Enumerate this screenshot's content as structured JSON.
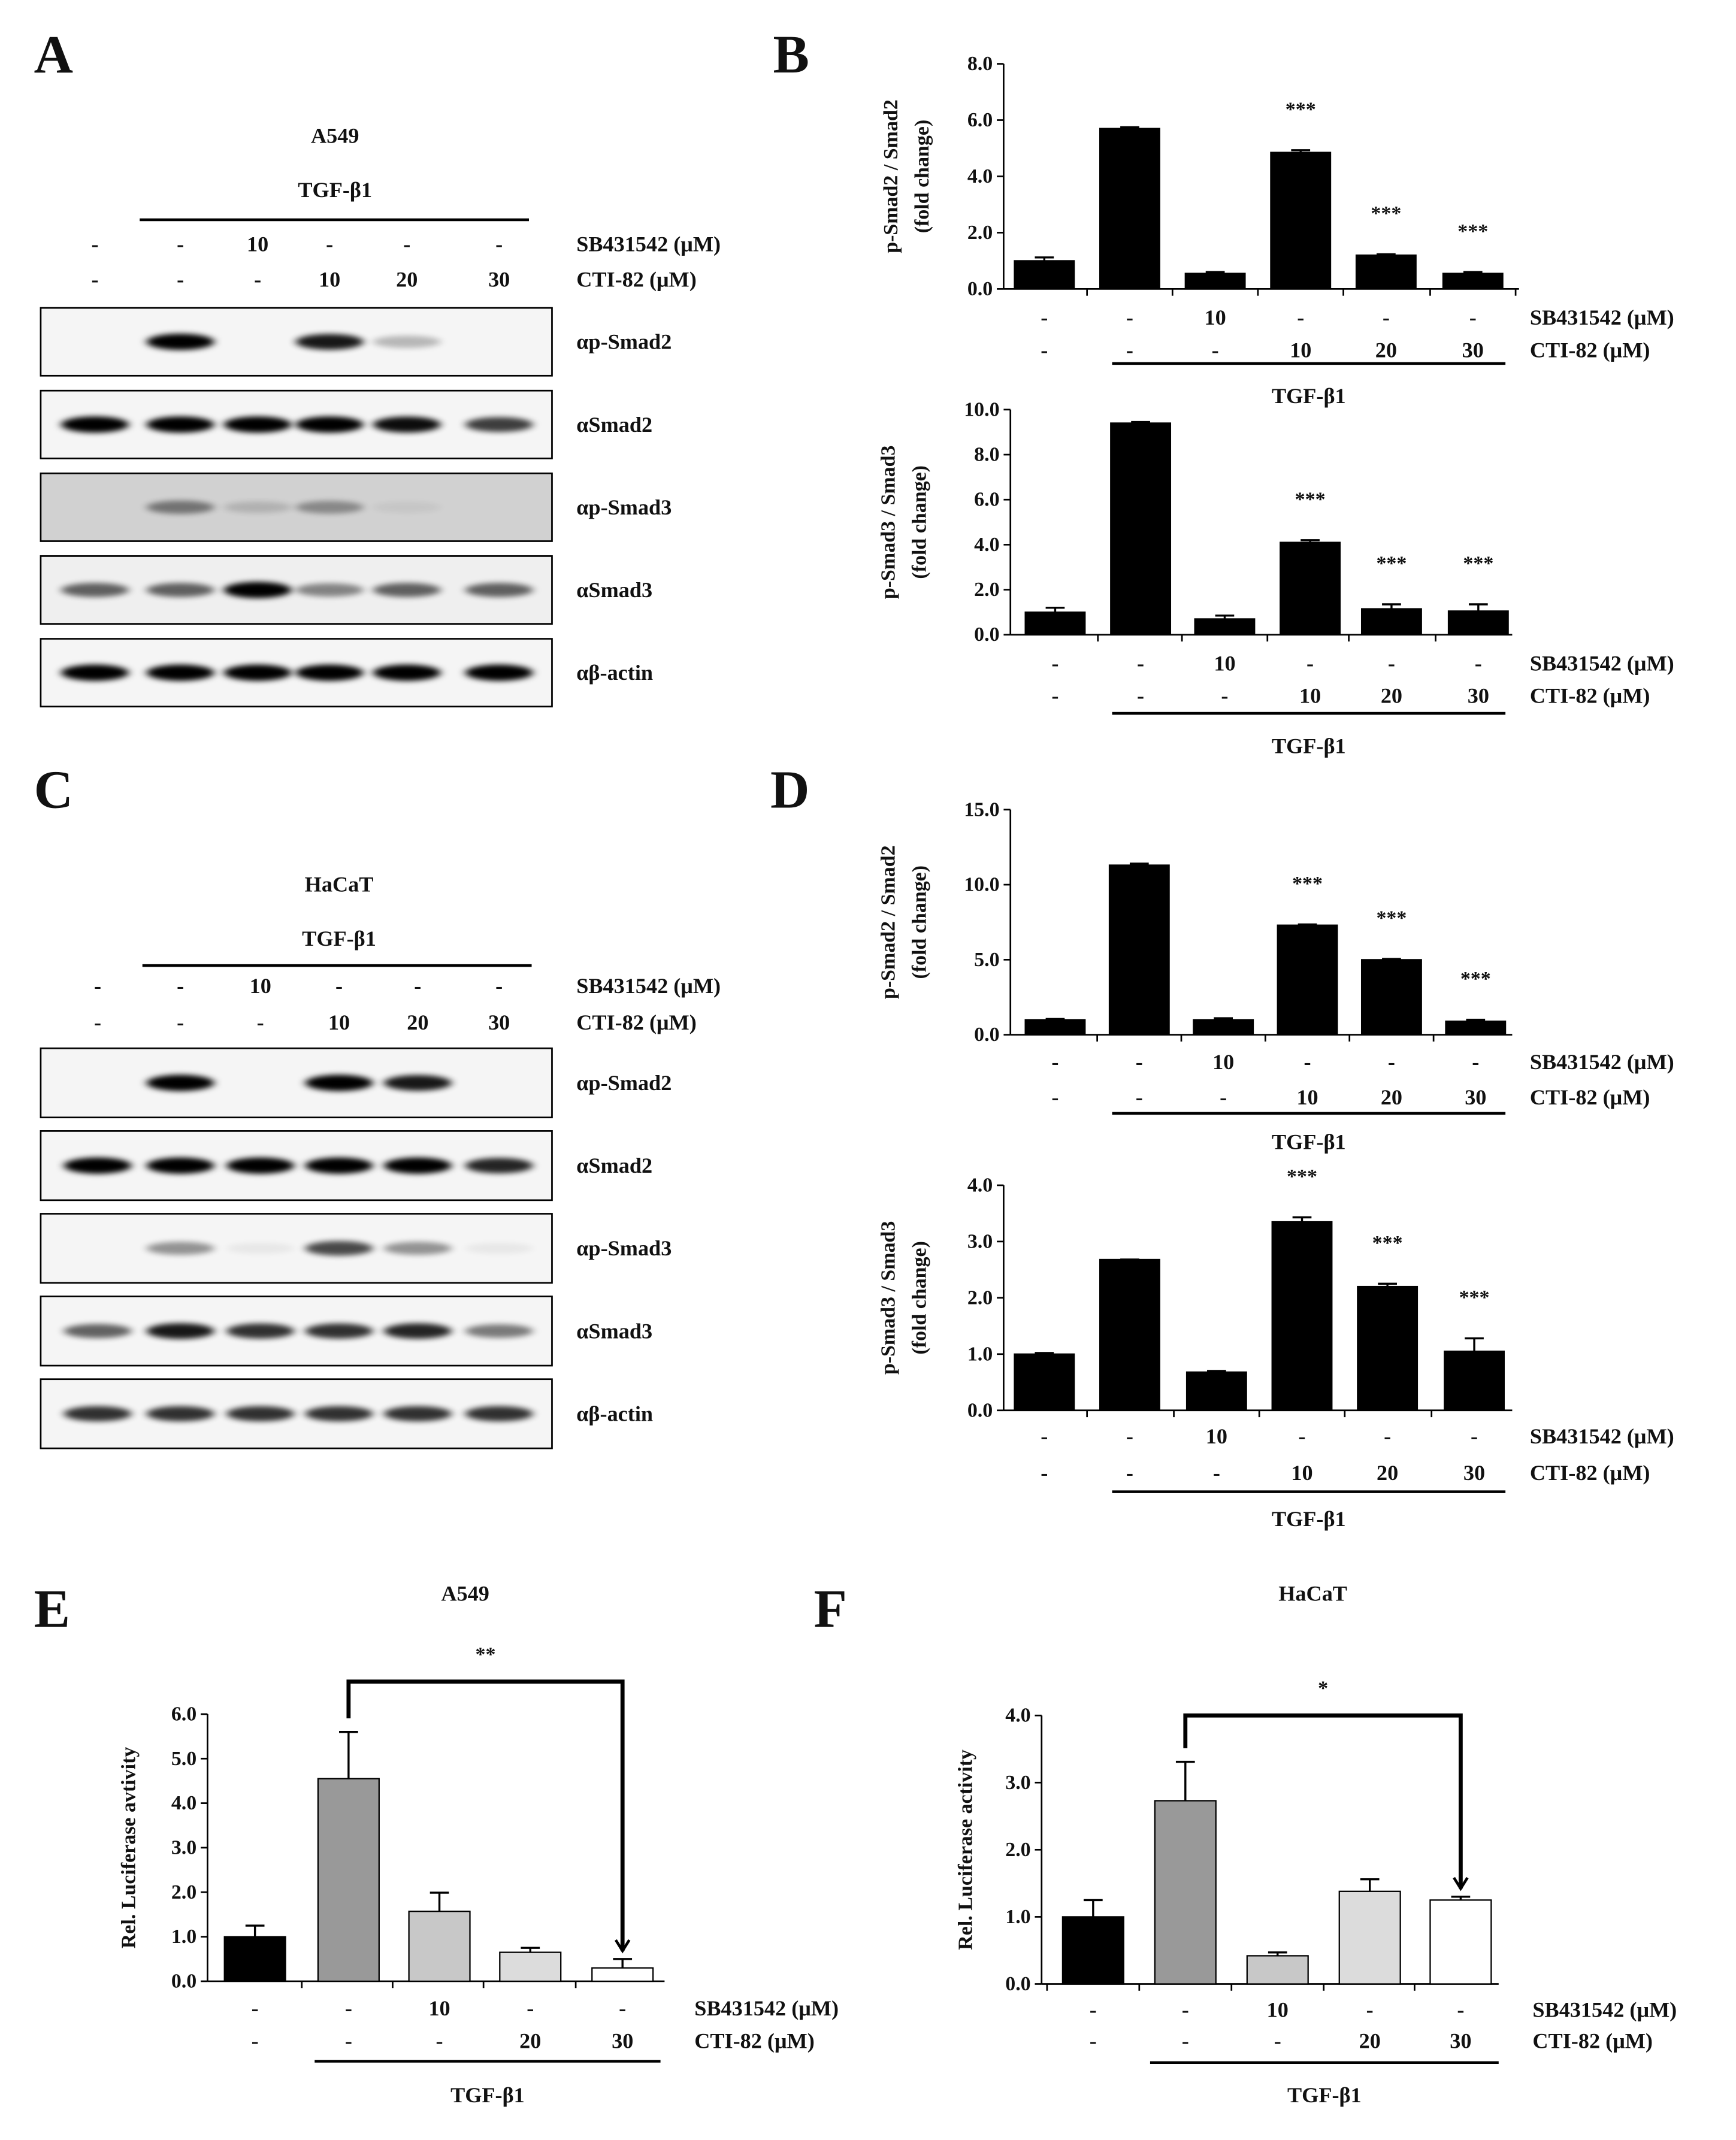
{
  "panel_labels": [
    "A",
    "B",
    "C",
    "D",
    "E",
    "F"
  ],
  "blots": [
    {
      "cell_line": "A549",
      "treatment": "TGF-β1",
      "conditions": [
        {
          "label": "SB431542 (μM)",
          "values": [
            "-",
            "-",
            "10",
            "-",
            "-",
            "-"
          ]
        },
        {
          "label": "CTI-82 (μM)",
          "values": [
            "-",
            "-",
            "-",
            "10",
            "20",
            "30"
          ]
        }
      ],
      "rows": [
        "αp-Smad2",
        "αSmad2",
        "αp-Smad3",
        "αSmad3",
        "αβ-actin"
      ]
    },
    {
      "cell_line": "HaCaT",
      "treatment": "TGF-β1",
      "conditions": [
        {
          "label": "SB431542 (μM)",
          "values": [
            "-",
            "-",
            "10",
            "-",
            "-",
            "-"
          ]
        },
        {
          "label": "CTI-82 (μM)",
          "values": [
            "-",
            "-",
            "-",
            "10",
            "20",
            "30"
          ]
        }
      ],
      "rows": [
        "αp-Smad2",
        "αSmad2",
        "αp-Smad3",
        "αSmad3",
        "αβ-actin"
      ]
    }
  ],
  "chart_data": [
    {
      "type": "bar",
      "ylabel": [
        "p-Smad2 / Smad2",
        "(fold change)"
      ],
      "values": [
        1.0,
        5.7,
        0.55,
        4.85,
        1.2,
        0.55
      ],
      "errors": [
        0.12,
        0.05,
        0.05,
        0.08,
        0.03,
        0.05
      ],
      "colors": [
        "#000000",
        "#000000",
        "#000000",
        "#000000",
        "#000000",
        "#000000"
      ],
      "annotations": [
        null,
        null,
        null,
        "***",
        "***",
        "***"
      ],
      "ylim": [
        0,
        8
      ],
      "yticks": [
        {
          "value": 0,
          "label": "0.0"
        },
        {
          "value": 2,
          "label": "2.0"
        },
        {
          "value": 4,
          "label": "4.0"
        },
        {
          "value": 6,
          "label": "6.0"
        },
        {
          "value": 8,
          "label": "8.0"
        }
      ],
      "conditions": [
        {
          "label": "SB431542 (μM)",
          "values": [
            "-",
            "-",
            "10",
            "-",
            "-",
            "-"
          ]
        },
        {
          "label": "CTI-82 (μM)",
          "values": [
            "-",
            "-",
            "-",
            "10",
            "20",
            "30"
          ]
        }
      ],
      "treatment": "TGF-β1"
    },
    {
      "type": "bar",
      "ylabel": [
        "p-Smad3 / Smad3",
        "(fold change)"
      ],
      "values": [
        1.0,
        9.4,
        0.7,
        4.1,
        1.15,
        1.05
      ],
      "errors": [
        0.2,
        0.05,
        0.15,
        0.1,
        0.2,
        0.3
      ],
      "colors": [
        "#000000",
        "#000000",
        "#000000",
        "#000000",
        "#000000",
        "#000000"
      ],
      "annotations": [
        null,
        null,
        null,
        "***",
        "***",
        "***"
      ],
      "ylim": [
        0,
        10
      ],
      "yticks": [
        {
          "value": 0,
          "label": "0.0"
        },
        {
          "value": 2,
          "label": "2.0"
        },
        {
          "value": 4,
          "label": "4.0"
        },
        {
          "value": 6,
          "label": "6.0"
        },
        {
          "value": 8,
          "label": "8.0"
        },
        {
          "value": 10,
          "label": "10.0"
        }
      ],
      "conditions": [
        {
          "label": "SB431542 (μM)",
          "values": [
            "-",
            "-",
            "10",
            "-",
            "-",
            "-"
          ]
        },
        {
          "label": "CTI-82 (μM)",
          "values": [
            "-",
            "-",
            "-",
            "10",
            "20",
            "30"
          ]
        }
      ],
      "treatment": "TGF-β1"
    },
    {
      "type": "bar",
      "ylabel": [
        "p-Smad2 / Smad2",
        "(fold change)"
      ],
      "values": [
        1.0,
        11.3,
        1.0,
        7.3,
        5.0,
        0.9
      ],
      "errors": [
        0.05,
        0.1,
        0.1,
        0.05,
        0.05,
        0.1
      ],
      "colors": [
        "#000000",
        "#000000",
        "#000000",
        "#000000",
        "#000000",
        "#000000"
      ],
      "annotations": [
        null,
        null,
        null,
        "***",
        "***",
        "***"
      ],
      "ylim": [
        0,
        15
      ],
      "yticks": [
        {
          "value": 0,
          "label": "0.0"
        },
        {
          "value": 5,
          "label": "5.0"
        },
        {
          "value": 10,
          "label": "10.0"
        },
        {
          "value": 15,
          "label": "15.0"
        }
      ],
      "conditions": [
        {
          "label": "SB431542 (μM)",
          "values": [
            "-",
            "-",
            "10",
            "-",
            "-",
            "-"
          ]
        },
        {
          "label": "CTI-82 (μM)",
          "values": [
            "-",
            "-",
            "-",
            "10",
            "20",
            "30"
          ]
        }
      ],
      "treatment": "TGF-β1"
    },
    {
      "type": "bar",
      "ylabel": [
        "p-Smad3 / Smad3",
        "(fold change)"
      ],
      "values": [
        1.0,
        2.68,
        0.68,
        3.35,
        2.2,
        1.05
      ],
      "errors": [
        0.02,
        0.0,
        0.02,
        0.08,
        0.05,
        0.23
      ],
      "colors": [
        "#000000",
        "#000000",
        "#000000",
        "#000000",
        "#000000",
        "#000000"
      ],
      "annotations": [
        null,
        null,
        null,
        "***",
        "***",
        "***"
      ],
      "ylim": [
        0,
        4
      ],
      "yticks": [
        {
          "value": 0,
          "label": "0.0"
        },
        {
          "value": 1,
          "label": "1.0"
        },
        {
          "value": 2,
          "label": "2.0"
        },
        {
          "value": 3,
          "label": "3.0"
        },
        {
          "value": 4,
          "label": "4.0"
        }
      ],
      "conditions": [
        {
          "label": "SB431542 (μM)",
          "values": [
            "-",
            "-",
            "10",
            "-",
            "-",
            "-"
          ]
        },
        {
          "label": "CTI-82 (μM)",
          "values": [
            "-",
            "-",
            "-",
            "10",
            "20",
            "30"
          ]
        }
      ],
      "treatment": "TGF-β1"
    },
    {
      "type": "bar",
      "title": "A549",
      "ylabel": [
        "Rel. Luciferase avtivity"
      ],
      "values": [
        1.0,
        4.55,
        1.57,
        0.65,
        0.3
      ],
      "errors": [
        0.25,
        1.05,
        0.42,
        0.1,
        0.2
      ],
      "colors": [
        "#000000",
        "#999999",
        "#c8c8c8",
        "#dcdcdc",
        "#ffffff"
      ],
      "significance": "**",
      "ylim": [
        0,
        6
      ],
      "yticks": [
        {
          "value": 0,
          "label": "0.0"
        },
        {
          "value": 1,
          "label": "1.0"
        },
        {
          "value": 2,
          "label": "2.0"
        },
        {
          "value": 3,
          "label": "3.0"
        },
        {
          "value": 4,
          "label": "4.0"
        },
        {
          "value": 5,
          "label": "5.0"
        },
        {
          "value": 6,
          "label": "6.0"
        }
      ],
      "conditions": [
        {
          "label": "SB431542 (μM)",
          "values": [
            "-",
            "-",
            "10",
            "-",
            "-"
          ]
        },
        {
          "label": "CTI-82 (μM)",
          "values": [
            "-",
            "-",
            "-",
            "20",
            "30"
          ]
        }
      ],
      "treatment": "TGF-β1"
    },
    {
      "type": "bar",
      "title": "HaCaT",
      "ylabel": [
        "Rel. Luciferase activity"
      ],
      "values": [
        1.0,
        2.73,
        0.42,
        1.38,
        1.25
      ],
      "errors": [
        0.25,
        0.58,
        0.05,
        0.18,
        0.05
      ],
      "colors": [
        "#000000",
        "#999999",
        "#c8c8c8",
        "#dcdcdc",
        "#ffffff"
      ],
      "significance": "*",
      "ylim": [
        0,
        4
      ],
      "yticks": [
        {
          "value": 0,
          "label": "0.0"
        },
        {
          "value": 1,
          "label": "1.0"
        },
        {
          "value": 2,
          "label": "2.0"
        },
        {
          "value": 3,
          "label": "3.0"
        },
        {
          "value": 4,
          "label": "4.0"
        }
      ],
      "conditions": [
        {
          "label": "SB431542 (μM)",
          "values": [
            "-",
            "-",
            "10",
            "-",
            "-"
          ]
        },
        {
          "label": "CTI-82 (μM)",
          "values": [
            "-",
            "-",
            "-",
            "20",
            "30"
          ]
        }
      ],
      "treatment": "TGF-β1"
    }
  ]
}
